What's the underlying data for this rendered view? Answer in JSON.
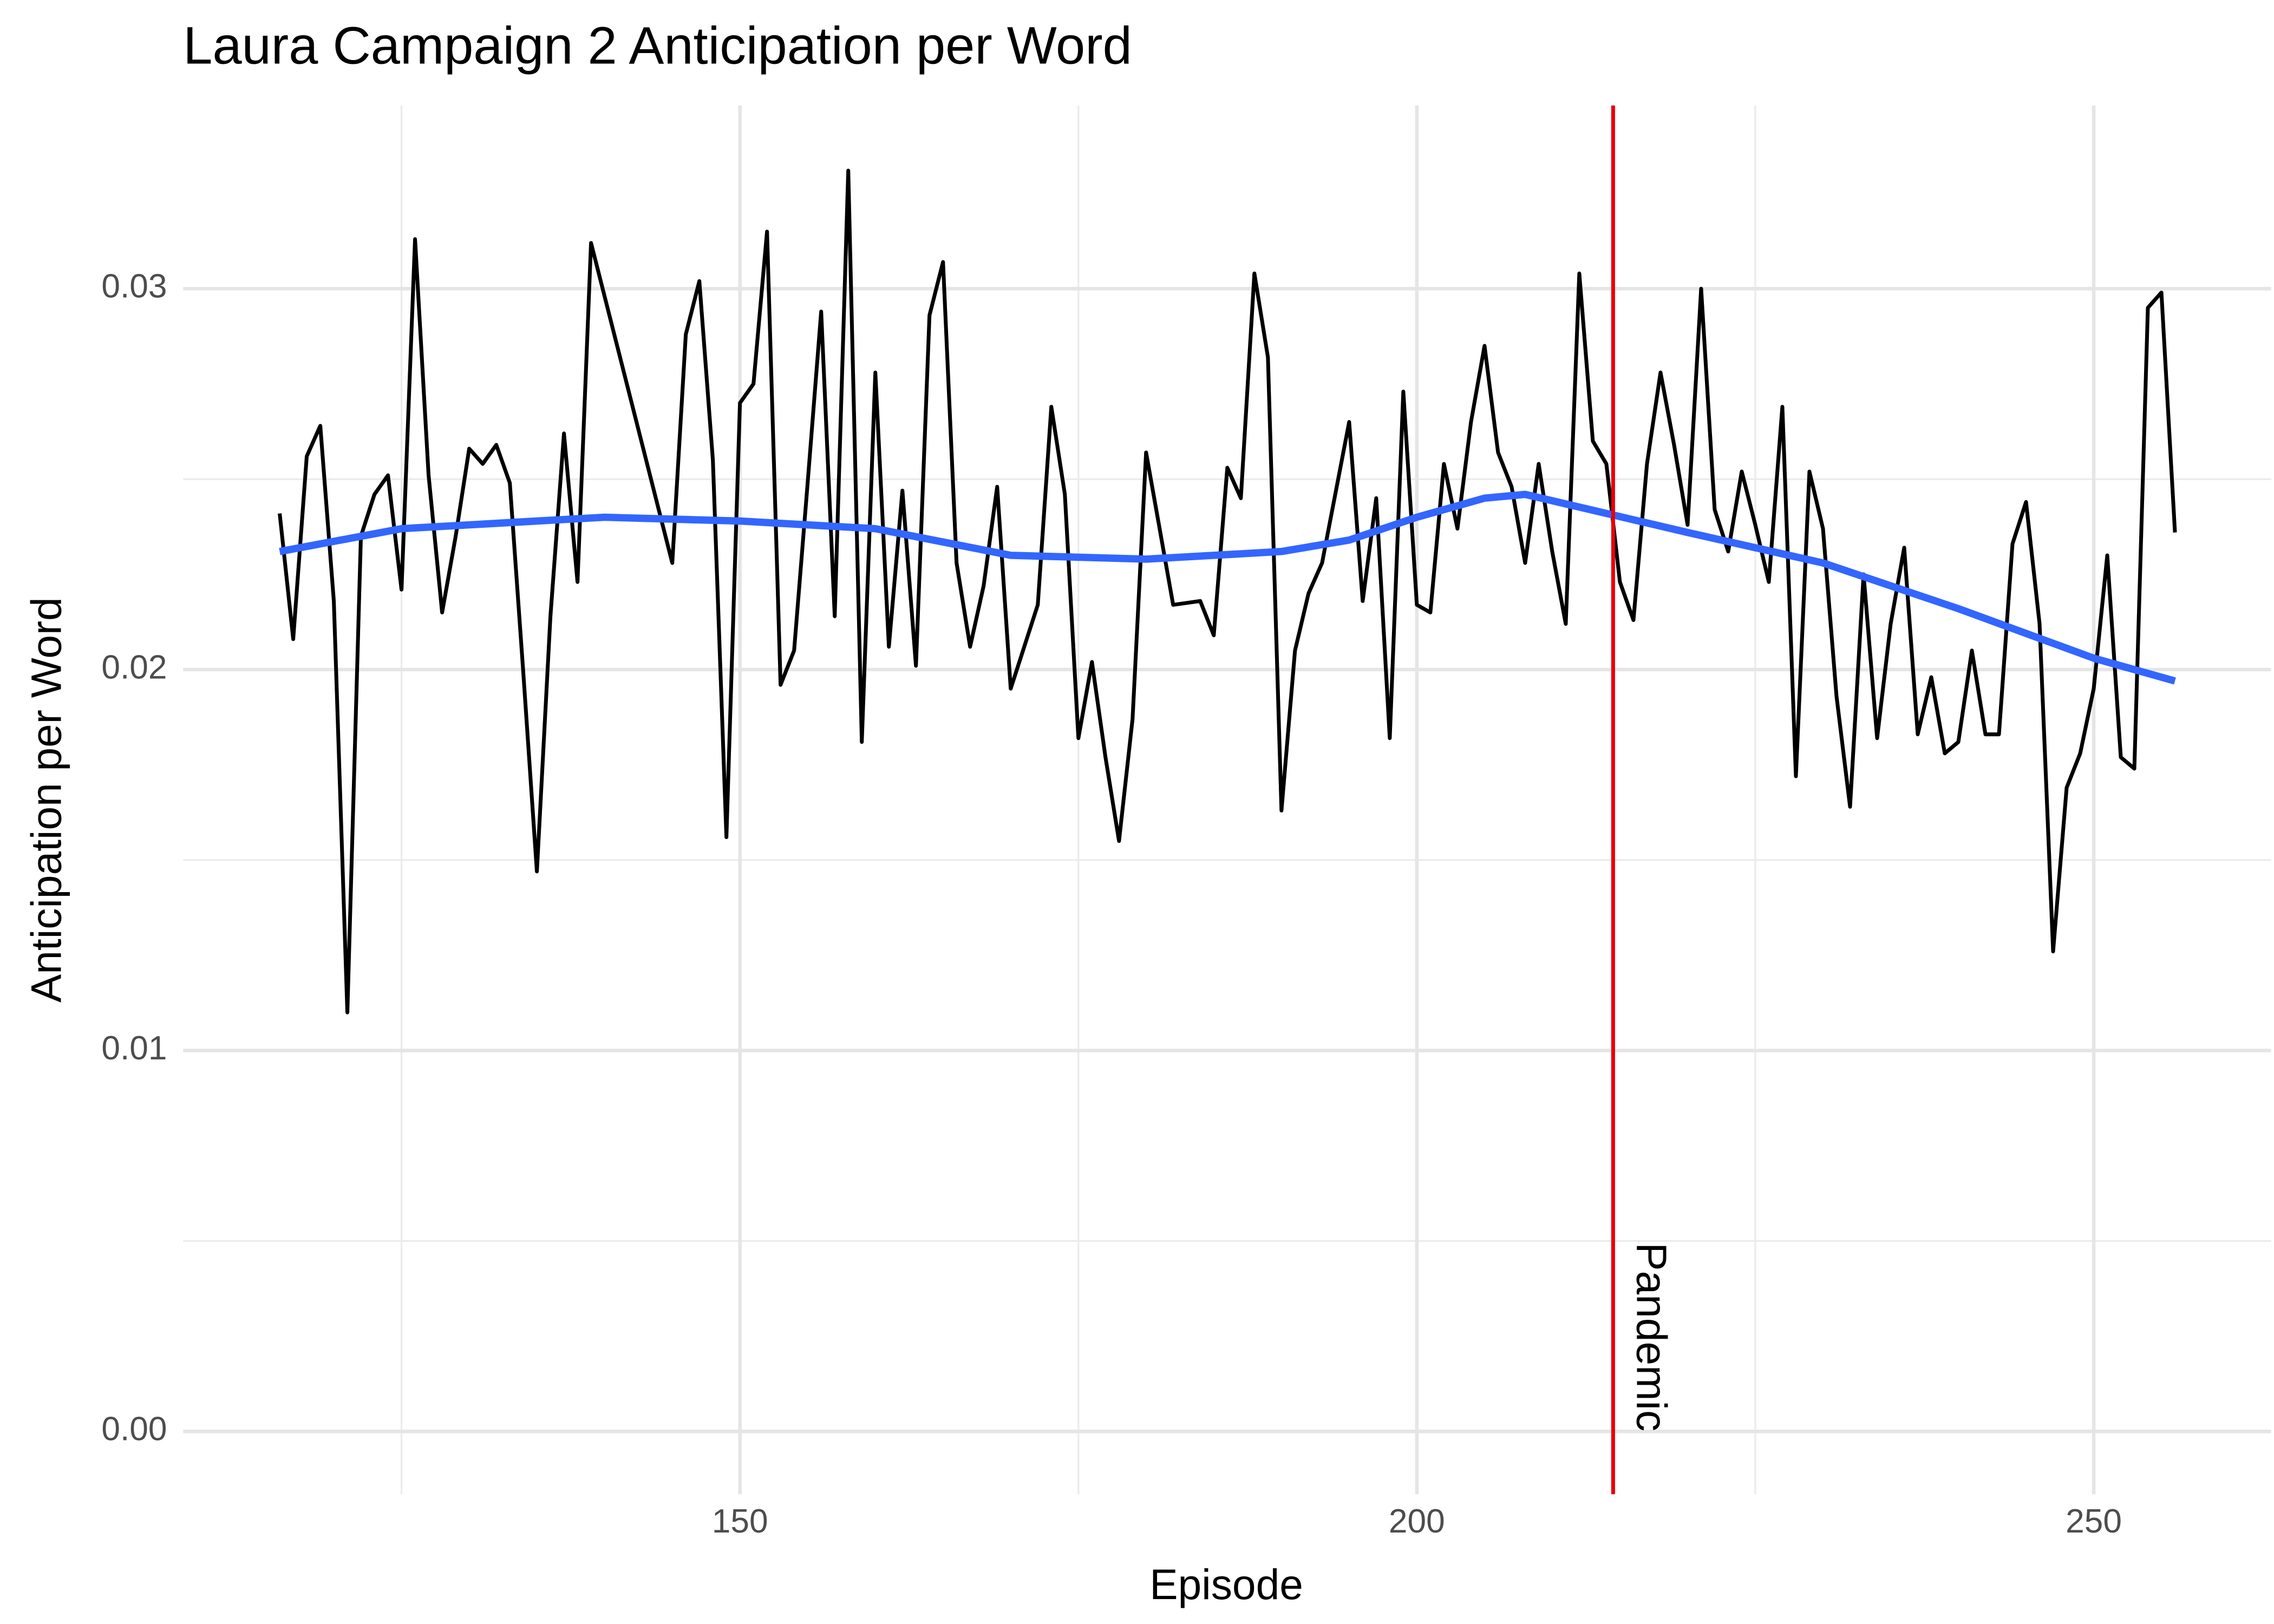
{
  "chart_data": {
    "type": "line",
    "title": "Laura Campaign 2 Anticipation per Word",
    "xlabel": "Episode",
    "ylabel": "Anticipation per Word",
    "xlim": [
      108.87,
      263.1
    ],
    "ylim": [
      -0.00165,
      0.03481
    ],
    "xticks": [
      150,
      200,
      250
    ],
    "xminorticks": [
      125,
      175,
      225
    ],
    "yticks": [
      {
        "value": 0,
        "label": "0.00"
      },
      {
        "value": 0.01,
        "label": "0.01"
      },
      {
        "value": 0.02,
        "label": "0.02"
      },
      {
        "value": 0.03,
        "label": "0.03"
      }
    ],
    "yminorticks": [
      0.005,
      0.015,
      0.025
    ],
    "grid": true,
    "series": [
      {
        "color": "#000000",
        "x": [
          116,
          117,
          118,
          119,
          120,
          121,
          122,
          123,
          124,
          125,
          126,
          127,
          128,
          129,
          130,
          131,
          132,
          133,
          134,
          135,
          136,
          137,
          138,
          139,
          145,
          146,
          147,
          148,
          149,
          150,
          151,
          152,
          153,
          154,
          155,
          156,
          157,
          158,
          159,
          160,
          161,
          162,
          163,
          164,
          165,
          166,
          167,
          168,
          169,
          170,
          172,
          173,
          174,
          175,
          176,
          177,
          178,
          179,
          180,
          182,
          184,
          185,
          186,
          187,
          188,
          189,
          190,
          191,
          192,
          193,
          195,
          196,
          197,
          198,
          199,
          200,
          201,
          202,
          203,
          204,
          205,
          206,
          207,
          208,
          209,
          210,
          211,
          212,
          213,
          214,
          215,
          216,
          217,
          218,
          219,
          220,
          221,
          222,
          223,
          224,
          225,
          226,
          227,
          228,
          229,
          230,
          231,
          232,
          233,
          234,
          235,
          236,
          237,
          238,
          239,
          240,
          241,
          242,
          243,
          244,
          245,
          246,
          247,
          248,
          249,
          250,
          251,
          252,
          253,
          254,
          255,
          256
        ],
        "values": [
          0.0241,
          0.0208,
          0.0256,
          0.0264,
          0.0218,
          0.011,
          0.0235,
          0.0246,
          0.0251,
          0.0221,
          0.0313,
          0.0251,
          0.0215,
          0.0235,
          0.0258,
          0.0254,
          0.0259,
          0.0249,
          0.0199,
          0.0147,
          0.0214,
          0.0262,
          0.0223,
          0.0312,
          0.0228,
          0.0288,
          0.0302,
          0.0255,
          0.0156,
          0.027,
          0.0275,
          0.0315,
          0.0196,
          0.0205,
          0.0249,
          0.0294,
          0.0214,
          0.0331,
          0.0181,
          0.0278,
          0.0206,
          0.0247,
          0.0201,
          0.0293,
          0.0307,
          0.0228,
          0.0206,
          0.0222,
          0.0248,
          0.0195,
          0.0217,
          0.0269,
          0.0246,
          0.0182,
          0.0202,
          0.0177,
          0.0155,
          0.0187,
          0.0257,
          0.0217,
          0.0218,
          0.0209,
          0.0253,
          0.0245,
          0.0304,
          0.0282,
          0.0163,
          0.0205,
          0.022,
          0.0228,
          0.0265,
          0.0218,
          0.0245,
          0.0182,
          0.0273,
          0.0217,
          0.0215,
          0.0254,
          0.0237,
          0.0265,
          0.0285,
          0.0257,
          0.0248,
          0.0228,
          0.0254,
          0.0231,
          0.0212,
          0.0304,
          0.026,
          0.0254,
          0.0223,
          0.0213,
          0.0254,
          0.0278,
          0.0259,
          0.0238,
          0.03,
          0.0242,
          0.0231,
          0.0252,
          0.0238,
          0.0223,
          0.0269,
          0.0172,
          0.0252,
          0.0237,
          0.0193,
          0.0164,
          0.0225,
          0.0182,
          0.0212,
          0.0232,
          0.0183,
          0.0198,
          0.0178,
          0.0181,
          0.0205,
          0.0183,
          0.0183,
          0.0233,
          0.0244,
          0.0212,
          0.0126,
          0.0169,
          0.0178,
          0.0195,
          0.023,
          0.0177,
          0.0174,
          0.0295,
          0.0299,
          0.0236
        ]
      },
      {
        "color": "#3366ff",
        "x": [
          116,
          125,
          140,
          150,
          160,
          170,
          180,
          190,
          195,
          200,
          205,
          208,
          214,
          220,
          230,
          240,
          250,
          256
        ],
        "values": [
          0.0231,
          0.0237,
          0.024,
          0.0239,
          0.0237,
          0.023,
          0.0229,
          0.0231,
          0.0234,
          0.024,
          0.0245,
          0.0246,
          0.0241,
          0.0236,
          0.0228,
          0.0216,
          0.0203,
          0.0197
        ]
      }
    ],
    "vline": {
      "x": 214.5,
      "color": "#e8000b",
      "label": "Pandemic"
    }
  }
}
